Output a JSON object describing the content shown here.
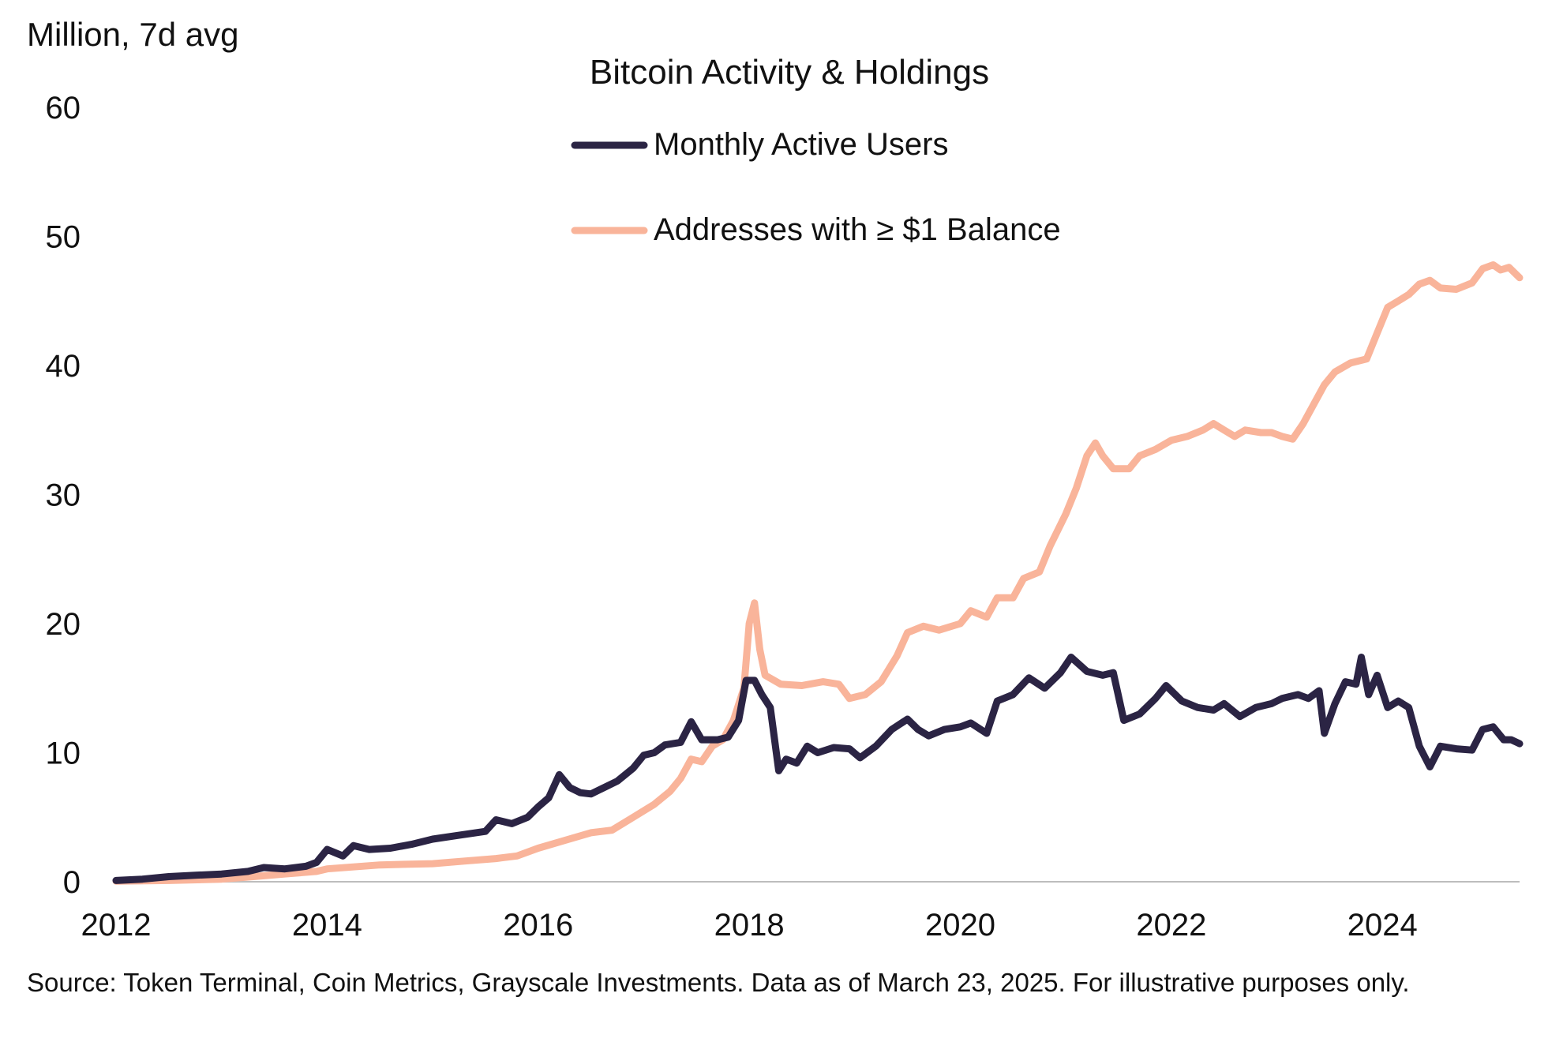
{
  "chart_data": {
    "type": "line",
    "title": "Bitcoin Activity & Holdings",
    "ylabel": "Million, 7d avg",
    "xlabel": "",
    "xlim": [
      2012,
      2025.3
    ],
    "ylim": [
      0,
      60
    ],
    "y_ticks": [
      "0",
      "10",
      "20",
      "30",
      "40",
      "50",
      "60"
    ],
    "y_tick_values": [
      0,
      10,
      20,
      30,
      40,
      50,
      60
    ],
    "x_ticks": [
      "2012",
      "2014",
      "2016",
      "2018",
      "2020",
      "2022",
      "2024"
    ],
    "x_tick_values": [
      2012,
      2014,
      2016,
      2018,
      2020,
      2022,
      2024
    ],
    "grid": false,
    "legend_position": "top-center",
    "series": [
      {
        "name": "Monthly Active Users",
        "color": "#2b2444",
        "points": [
          [
            2012.0,
            0.1
          ],
          [
            2012.25,
            0.2
          ],
          [
            2012.5,
            0.4
          ],
          [
            2012.75,
            0.5
          ],
          [
            2013.0,
            0.6
          ],
          [
            2013.25,
            0.8
          ],
          [
            2013.4,
            1.1
          ],
          [
            2013.6,
            1.0
          ],
          [
            2013.8,
            1.2
          ],
          [
            2013.9,
            1.5
          ],
          [
            2014.0,
            2.5
          ],
          [
            2014.15,
            2.0
          ],
          [
            2014.25,
            2.8
          ],
          [
            2014.4,
            2.5
          ],
          [
            2014.6,
            2.6
          ],
          [
            2014.8,
            2.9
          ],
          [
            2015.0,
            3.3
          ],
          [
            2015.25,
            3.6
          ],
          [
            2015.5,
            3.9
          ],
          [
            2015.6,
            4.8
          ],
          [
            2015.75,
            4.5
          ],
          [
            2015.9,
            5.0
          ],
          [
            2016.0,
            5.8
          ],
          [
            2016.1,
            6.5
          ],
          [
            2016.2,
            8.3
          ],
          [
            2016.3,
            7.3
          ],
          [
            2016.4,
            6.9
          ],
          [
            2016.5,
            6.8
          ],
          [
            2016.6,
            7.2
          ],
          [
            2016.75,
            7.8
          ],
          [
            2016.9,
            8.8
          ],
          [
            2017.0,
            9.8
          ],
          [
            2017.1,
            10.0
          ],
          [
            2017.2,
            10.6
          ],
          [
            2017.35,
            10.8
          ],
          [
            2017.45,
            12.4
          ],
          [
            2017.55,
            11.0
          ],
          [
            2017.7,
            11.0
          ],
          [
            2017.8,
            11.2
          ],
          [
            2017.9,
            12.5
          ],
          [
            2017.97,
            15.6
          ],
          [
            2018.05,
            15.6
          ],
          [
            2018.12,
            14.5
          ],
          [
            2018.2,
            13.5
          ],
          [
            2018.28,
            8.6
          ],
          [
            2018.35,
            9.5
          ],
          [
            2018.45,
            9.2
          ],
          [
            2018.55,
            10.5
          ],
          [
            2018.65,
            10.0
          ],
          [
            2018.8,
            10.4
          ],
          [
            2018.95,
            10.3
          ],
          [
            2019.05,
            9.6
          ],
          [
            2019.2,
            10.5
          ],
          [
            2019.35,
            11.8
          ],
          [
            2019.5,
            12.6
          ],
          [
            2019.6,
            11.8
          ],
          [
            2019.7,
            11.3
          ],
          [
            2019.85,
            11.8
          ],
          [
            2020.0,
            12.0
          ],
          [
            2020.1,
            12.3
          ],
          [
            2020.25,
            11.5
          ],
          [
            2020.35,
            14.0
          ],
          [
            2020.5,
            14.5
          ],
          [
            2020.65,
            15.8
          ],
          [
            2020.8,
            15.0
          ],
          [
            2020.95,
            16.2
          ],
          [
            2021.05,
            17.4
          ],
          [
            2021.2,
            16.3
          ],
          [
            2021.35,
            16.0
          ],
          [
            2021.45,
            16.2
          ],
          [
            2021.55,
            12.5
          ],
          [
            2021.7,
            13.0
          ],
          [
            2021.85,
            14.2
          ],
          [
            2021.95,
            15.2
          ],
          [
            2022.1,
            14.0
          ],
          [
            2022.25,
            13.5
          ],
          [
            2022.4,
            13.3
          ],
          [
            2022.5,
            13.8
          ],
          [
            2022.65,
            12.8
          ],
          [
            2022.8,
            13.5
          ],
          [
            2022.95,
            13.8
          ],
          [
            2023.05,
            14.2
          ],
          [
            2023.2,
            14.5
          ],
          [
            2023.3,
            14.2
          ],
          [
            2023.4,
            14.8
          ],
          [
            2023.45,
            11.5
          ],
          [
            2023.55,
            13.8
          ],
          [
            2023.65,
            15.5
          ],
          [
            2023.75,
            15.3
          ],
          [
            2023.8,
            17.4
          ],
          [
            2023.87,
            14.5
          ],
          [
            2023.95,
            16.0
          ],
          [
            2024.05,
            13.5
          ],
          [
            2024.15,
            14.0
          ],
          [
            2024.25,
            13.5
          ],
          [
            2024.35,
            10.5
          ],
          [
            2024.45,
            8.9
          ],
          [
            2024.55,
            10.5
          ],
          [
            2024.7,
            10.3
          ],
          [
            2024.85,
            10.2
          ],
          [
            2024.95,
            11.8
          ],
          [
            2025.05,
            12.0
          ],
          [
            2025.15,
            11.0
          ],
          [
            2025.22,
            11.0
          ],
          [
            2025.3,
            10.7
          ]
        ]
      },
      {
        "name": "Addresses with ≥ $1 Balance",
        "color": "#f9b49a",
        "points": [
          [
            2012.0,
            0.05
          ],
          [
            2012.5,
            0.1
          ],
          [
            2013.0,
            0.2
          ],
          [
            2013.3,
            0.4
          ],
          [
            2013.6,
            0.6
          ],
          [
            2013.9,
            0.8
          ],
          [
            2014.0,
            1.0
          ],
          [
            2014.5,
            1.3
          ],
          [
            2015.0,
            1.4
          ],
          [
            2015.3,
            1.6
          ],
          [
            2015.6,
            1.8
          ],
          [
            2015.8,
            2.0
          ],
          [
            2016.0,
            2.6
          ],
          [
            2016.25,
            3.2
          ],
          [
            2016.5,
            3.8
          ],
          [
            2016.7,
            4.0
          ],
          [
            2016.9,
            5.0
          ],
          [
            2017.1,
            6.0
          ],
          [
            2017.25,
            7.0
          ],
          [
            2017.35,
            8.0
          ],
          [
            2017.45,
            9.5
          ],
          [
            2017.55,
            9.3
          ],
          [
            2017.65,
            10.5
          ],
          [
            2017.75,
            11.0
          ],
          [
            2017.85,
            12.5
          ],
          [
            2017.95,
            15.0
          ],
          [
            2018.0,
            20.0
          ],
          [
            2018.05,
            21.6
          ],
          [
            2018.1,
            18.0
          ],
          [
            2018.15,
            16.0
          ],
          [
            2018.3,
            15.3
          ],
          [
            2018.5,
            15.2
          ],
          [
            2018.7,
            15.5
          ],
          [
            2018.85,
            15.3
          ],
          [
            2018.95,
            14.2
          ],
          [
            2019.1,
            14.5
          ],
          [
            2019.25,
            15.5
          ],
          [
            2019.4,
            17.5
          ],
          [
            2019.5,
            19.3
          ],
          [
            2019.65,
            19.8
          ],
          [
            2019.8,
            19.5
          ],
          [
            2020.0,
            20.0
          ],
          [
            2020.1,
            21.0
          ],
          [
            2020.25,
            20.5
          ],
          [
            2020.35,
            22.0
          ],
          [
            2020.5,
            22.0
          ],
          [
            2020.6,
            23.5
          ],
          [
            2020.75,
            24.0
          ],
          [
            2020.85,
            26.0
          ],
          [
            2021.0,
            28.5
          ],
          [
            2021.1,
            30.5
          ],
          [
            2021.2,
            33.0
          ],
          [
            2021.28,
            34.0
          ],
          [
            2021.35,
            33.0
          ],
          [
            2021.45,
            32.0
          ],
          [
            2021.6,
            32.0
          ],
          [
            2021.7,
            33.0
          ],
          [
            2021.85,
            33.5
          ],
          [
            2022.0,
            34.2
          ],
          [
            2022.15,
            34.5
          ],
          [
            2022.3,
            35.0
          ],
          [
            2022.4,
            35.5
          ],
          [
            2022.5,
            35.0
          ],
          [
            2022.6,
            34.5
          ],
          [
            2022.7,
            35.0
          ],
          [
            2022.85,
            34.8
          ],
          [
            2022.95,
            34.8
          ],
          [
            2023.05,
            34.5
          ],
          [
            2023.15,
            34.3
          ],
          [
            2023.25,
            35.5
          ],
          [
            2023.35,
            37.0
          ],
          [
            2023.45,
            38.5
          ],
          [
            2023.55,
            39.5
          ],
          [
            2023.7,
            40.2
          ],
          [
            2023.85,
            40.5
          ],
          [
            2023.95,
            42.5
          ],
          [
            2024.05,
            44.5
          ],
          [
            2024.15,
            45.0
          ],
          [
            2024.25,
            45.5
          ],
          [
            2024.35,
            46.3
          ],
          [
            2024.45,
            46.6
          ],
          [
            2024.55,
            46.0
          ],
          [
            2024.7,
            45.9
          ],
          [
            2024.85,
            46.4
          ],
          [
            2024.95,
            47.5
          ],
          [
            2025.05,
            47.8
          ],
          [
            2025.12,
            47.4
          ],
          [
            2025.2,
            47.6
          ],
          [
            2025.3,
            46.8
          ]
        ]
      }
    ],
    "source_note": "Source: Token Terminal, Coin Metrics, Grayscale Investments. Data as of March 23, 2025. For illustrative purposes only."
  }
}
